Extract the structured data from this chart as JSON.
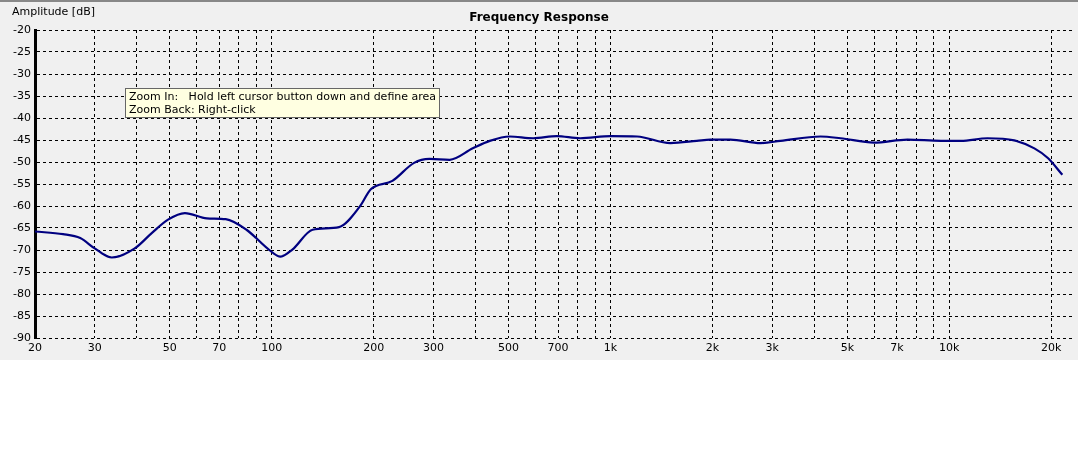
{
  "chart_data": {
    "type": "line",
    "title": "Frequency Response",
    "ylabel": "Amplitude [dB]",
    "annotations": [
      "Zoom In:   Hold left cursor button down and define area\nZoom Back: Right-click"
    ],
    "log": "x",
    "grid": true,
    "marker": "none",
    "xlim": [
      20,
      23500
    ],
    "ylim": [
      -90,
      -20
    ],
    "xticks": [
      20,
      30,
      {
        "value": 40,
        "label": null
      },
      50,
      {
        "value": 60,
        "label": null
      },
      70,
      {
        "value": 80,
        "label": null
      },
      {
        "value": 90,
        "label": null
      },
      100,
      200,
      300,
      {
        "value": 400,
        "label": null
      },
      500,
      {
        "value": 600,
        "label": null
      },
      700,
      {
        "value": 800,
        "label": null
      },
      {
        "value": 900,
        "label": null
      },
      {
        "value": 1000,
        "label": "1k"
      },
      {
        "value": 2000,
        "label": "2k"
      },
      {
        "value": 3000,
        "label": "3k"
      },
      {
        "value": 4000,
        "label": null
      },
      {
        "value": 5000,
        "label": "5k"
      },
      {
        "value": 6000,
        "label": null
      },
      {
        "value": 7000,
        "label": "7k"
      },
      {
        "value": 8000,
        "label": null
      },
      {
        "value": 9000,
        "label": null
      },
      {
        "value": 10000,
        "label": "10k"
      },
      {
        "value": 20000,
        "label": "20k"
      }
    ],
    "yticks": [
      -90,
      -85,
      -80,
      -75,
      -70,
      -65,
      -60,
      -55,
      -50,
      -45,
      -40,
      -35,
      -30,
      -25,
      -20
    ],
    "series": [
      {
        "color": "#000080",
        "x": [
          20,
          24.2,
          27.2,
          30.1,
          33.7,
          39.3,
          44.3,
          49.4,
          55.4,
          64.3,
          73.1,
          84.2,
          98,
          106,
          115,
          132,
          158,
          182,
          196,
          227,
          263,
          292,
          335,
          392,
          440,
          504,
          591,
          694,
          813,
          1000,
          1198,
          1502,
          1797,
          1970,
          2257,
          2773,
          3175,
          4167,
          4776,
          5993,
          7524,
          9440,
          10820,
          12970,
          15550,
          17830,
          19540,
          21560
        ],
        "values": [
          -65.8,
          -66.4,
          -67.3,
          -69.7,
          -71.7,
          -69.7,
          -66.1,
          -63.1,
          -61.6,
          -62.8,
          -63.0,
          -65.4,
          -69.9,
          -71.5,
          -69.9,
          -65.4,
          -64.8,
          -60.1,
          -56.2,
          -54.3,
          -50.2,
          -49.3,
          -49.5,
          -46.9,
          -45.2,
          -44.2,
          -44.6,
          -44.1,
          -44.6,
          -44.1,
          -44.2,
          -45.7,
          -45.2,
          -44.9,
          -44.9,
          -45.7,
          -45.2,
          -44.2,
          -44.6,
          -45.6,
          -44.9,
          -45.2,
          -45.2,
          -44.6,
          -45.1,
          -46.9,
          -49.1,
          -52.9
        ]
      }
    ]
  }
}
